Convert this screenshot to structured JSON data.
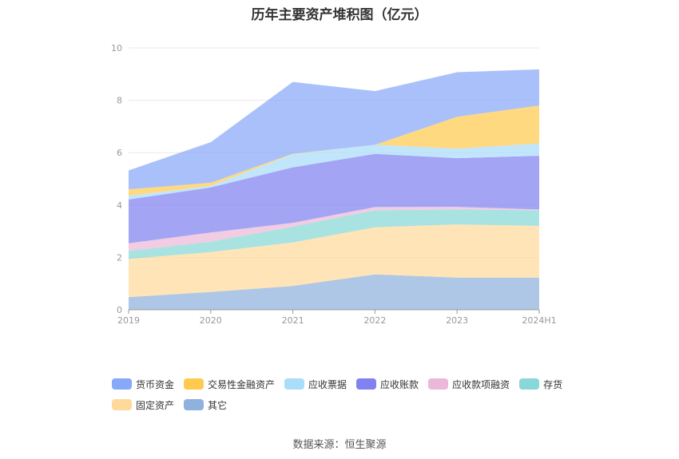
{
  "title": "历年主要资产堆积图（亿元）",
  "source": "数据来源：恒生聚源",
  "chart_data": {
    "type": "area",
    "stacked": true,
    "title": "历年主要资产堆积图（亿元）",
    "xlabel": "",
    "ylabel": "",
    "ylim": [
      0,
      10
    ],
    "yticks": [
      "0",
      "2",
      "4",
      "6",
      "8",
      "10"
    ],
    "categories": [
      "2019",
      "2020",
      "2021",
      "2022",
      "2023",
      "2024H1"
    ],
    "legend_position": "bottom",
    "series": [
      {
        "name": "其它",
        "color": "#8fb1dd",
        "values": [
          0.48,
          0.68,
          0.91,
          1.35,
          1.23,
          1.22
        ]
      },
      {
        "name": "固定资产",
        "color": "#ffd99c",
        "values": [
          1.46,
          1.52,
          1.66,
          1.8,
          2.03,
          1.98
        ]
      },
      {
        "name": "存货",
        "color": "#87d8d6",
        "values": [
          0.3,
          0.4,
          0.6,
          0.65,
          0.57,
          0.6
        ]
      },
      {
        "name": "应收款项融资",
        "color": "#ebb8d8",
        "values": [
          0.3,
          0.35,
          0.15,
          0.12,
          0.1,
          0.03
        ]
      },
      {
        "name": "应收账款",
        "color": "#8181f0",
        "values": [
          1.67,
          1.72,
          2.12,
          2.03,
          1.86,
          2.05
        ]
      },
      {
        "name": "应收票据",
        "color": "#a9ddfa",
        "values": [
          0.14,
          0.06,
          0.5,
          0.35,
          0.36,
          0.47
        ]
      },
      {
        "name": "交易性金融资产",
        "color": "#ffca4f",
        "values": [
          0.25,
          0.12,
          0.02,
          0.0,
          1.22,
          1.45
        ]
      },
      {
        "name": "货币资金",
        "color": "#88a8f8",
        "values": [
          0.72,
          1.55,
          2.74,
          2.05,
          1.7,
          1.38
        ]
      }
    ]
  },
  "legend": [
    {
      "label": "货币资金",
      "color": "#88a8f8"
    },
    {
      "label": "交易性金融资产",
      "color": "#ffca4f"
    },
    {
      "label": "应收票据",
      "color": "#a9ddfa"
    },
    {
      "label": "应收账款",
      "color": "#8181f0"
    },
    {
      "label": "应收款项融资",
      "color": "#ebb8d8"
    },
    {
      "label": "存货",
      "color": "#87d8d6"
    },
    {
      "label": "固定资产",
      "color": "#ffd99c"
    },
    {
      "label": "其它",
      "color": "#8fb1dd"
    }
  ]
}
